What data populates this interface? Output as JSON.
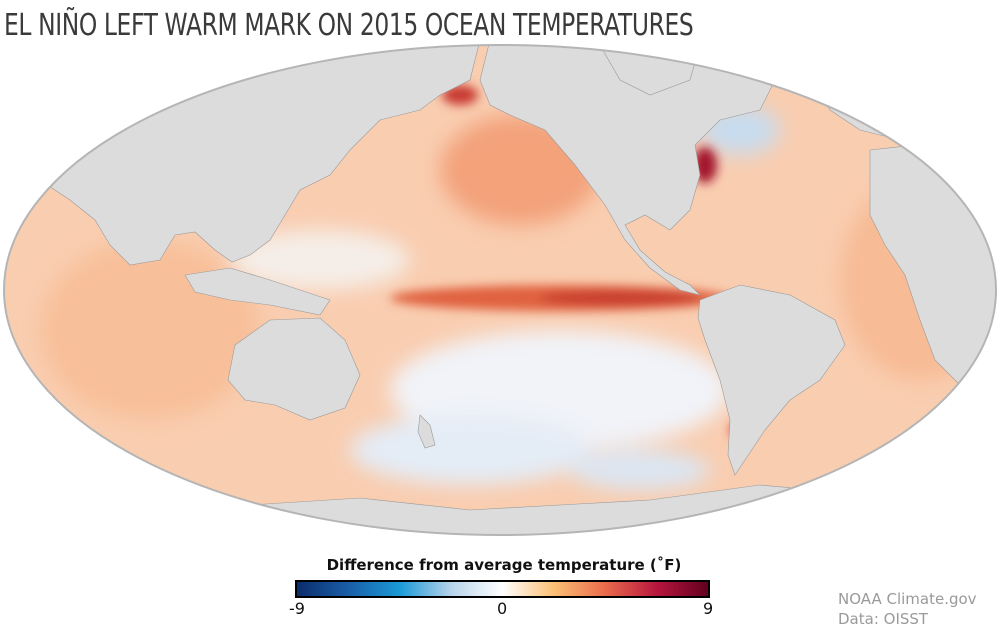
{
  "title": "EL NIÑO LEFT WARM MARK ON 2015 OCEAN TEMPERATURES",
  "legend": {
    "title": "Difference from average temperature (˚F)",
    "min_label": "-9",
    "mid_label": "0",
    "max_label": "9",
    "range": [
      -9,
      9
    ],
    "colors": [
      "#0a2d6b",
      "#1a5ea8",
      "#1a9ad6",
      "#b7d3ea",
      "#ffffff",
      "#fbbf74",
      "#ea6b4c",
      "#b8163e",
      "#62001f"
    ]
  },
  "credits": {
    "source": "NOAA Climate.gov",
    "data": "Data: OISST"
  },
  "map": {
    "projection": "Pacific-centered elliptical world map",
    "land_color": "#dcdcdc",
    "ocean_warm_color": "#f9c9a6"
  }
}
